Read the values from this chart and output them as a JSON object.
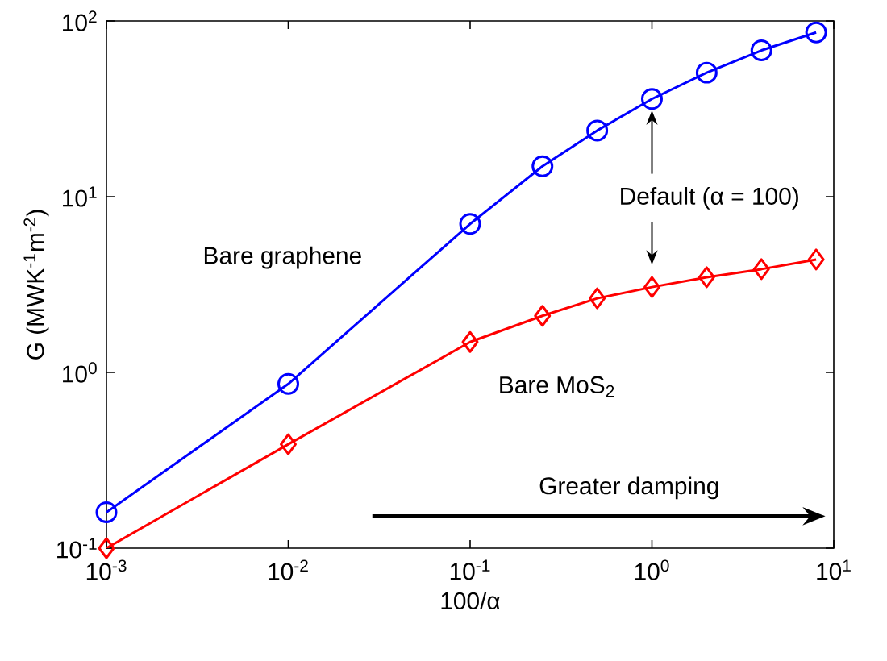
{
  "chart_data": {
    "type": "line",
    "xlabel": "100/α",
    "ylabel": "G (MWK$^{-1}$m$^{-2}$)",
    "log": "xy",
    "x": [
      0.001,
      0.01,
      0.1,
      0.25,
      0.5,
      1,
      2,
      4,
      8
    ],
    "series": [
      {
        "name": "Bare graphene",
        "color": "#0000ff",
        "marker": "circle",
        "values": [
          0.16,
          0.86,
          7,
          14.9,
          23.8,
          36,
          50.8,
          68,
          86
        ]
      },
      {
        "name": "Bare MoS$_{2}$",
        "color": "#ff0000",
        "marker": "diamond",
        "values": [
          0.1,
          0.39,
          1.49,
          2.1,
          2.64,
          3.06,
          3.48,
          3.87,
          4.39
        ]
      }
    ],
    "xlim": [
      0.001,
      10
    ],
    "ylim": [
      0.1,
      100
    ],
    "xticks": [
      {
        "value": 0.001,
        "label": "10$^{-3}$"
      },
      {
        "value": 0.01,
        "label": "10$^{-2}$"
      },
      {
        "value": 0.1,
        "label": "10$^{-1}$"
      },
      {
        "value": 1,
        "label": "10$^{0}$"
      },
      {
        "value": 10,
        "label": "10$^{1}$"
      }
    ],
    "yticks": [
      {
        "value": 0.1,
        "label": "10$^{-1}$"
      },
      {
        "value": 1,
        "label": "10$^{0}$"
      },
      {
        "value": 10,
        "label": "10$^{1}$"
      },
      {
        "value": 100,
        "label": "10$^{2}$"
      }
    ],
    "annotations": [
      {
        "text": "Default (α = 100)",
        "x": 1,
        "y": 31
      },
      "Greater damping"
    ]
  }
}
